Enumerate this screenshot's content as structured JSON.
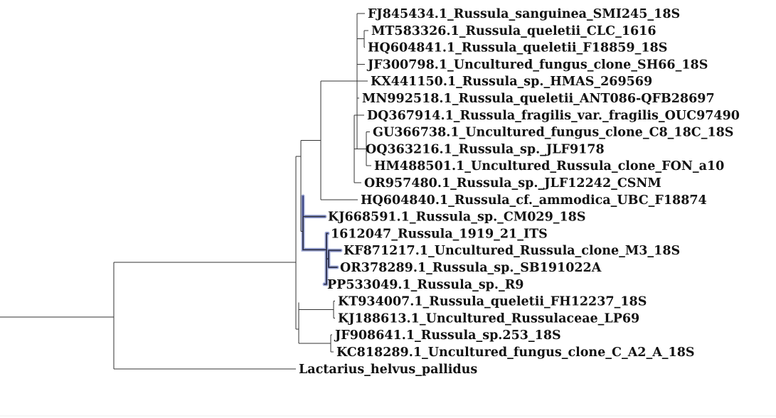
{
  "tree": {
    "selected_clade": "1612047_Russula_1919_21_ITS",
    "taxa": [
      "FJ845434.1_Russula_sanguinea_SMI245_18S",
      "MT583326.1_Russula_queletii_CLC_1616",
      "HQ604841.1_Russula_queletii_F18859_18S",
      "JF300798.1_Uncultured_fungus_clone_SH66_18S",
      "KX441150.1_Russula_sp._HMAS_269569",
      "MN992518.1_Russula_queletii_ANT086-QFB28697",
      "DQ367914.1_Russula_fragilis_var._fragilis_OUC97490",
      "GU366738.1_Uncultured_fungus_clone_C8_18C_18S",
      "OQ363216.1_Russula_sp._JLF9178",
      "HM488501.1_Uncultured_Russula_clone_FON_a10",
      "OR957480.1_Russula_sp._JLF12242_CSNM",
      "HQ604840.1_Russula_cf._ammodica_UBC_F18874",
      "KJ668591.1_Russula_sp._CM029_18S",
      "1612047_Russula_1919_21_ITS",
      "KF871217.1_Uncultured_Russula_clone_M3_18S",
      "OR378289.1_Russula_sp._SB191022A",
      "PP533049.1_Russula_sp._R9",
      "KT934007.1_Russula_queletii_FH12237_18S",
      "KJ188613.1_Uncultured_Russulaceae_LP69",
      "JF908641.1_Russula_sp.253_18S",
      "KC818289.1_Uncultured_fungus_clone_C_A2_A_18S",
      "Lactarius_helvus_pallidus"
    ]
  }
}
